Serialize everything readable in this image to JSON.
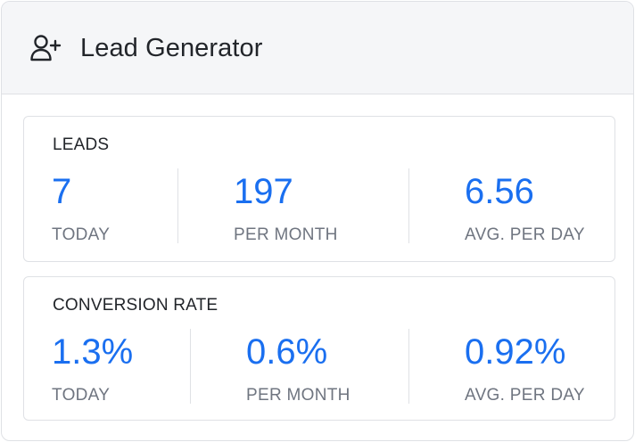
{
  "header": {
    "title": "Lead Generator",
    "icon": "add-user-icon"
  },
  "colors": {
    "accent": "#1a6ff0",
    "label": "#6f7580",
    "text": "#22252a",
    "border": "#dfe1e5",
    "header_bg": "#f5f6f8"
  },
  "leads": {
    "title": "LEADS",
    "stats": [
      {
        "value": "7",
        "label": "TODAY"
      },
      {
        "value": "197",
        "label": "PER MONTH"
      },
      {
        "value": "6.56",
        "label": "AVG. PER DAY"
      }
    ]
  },
  "conversion": {
    "title": "CONVERSION RATE",
    "stats": [
      {
        "value": "1.3%",
        "label": "TODAY"
      },
      {
        "value": "0.6%",
        "label": "PER MONTH"
      },
      {
        "value": "0.92%",
        "label": "AVG. PER DAY"
      }
    ]
  }
}
